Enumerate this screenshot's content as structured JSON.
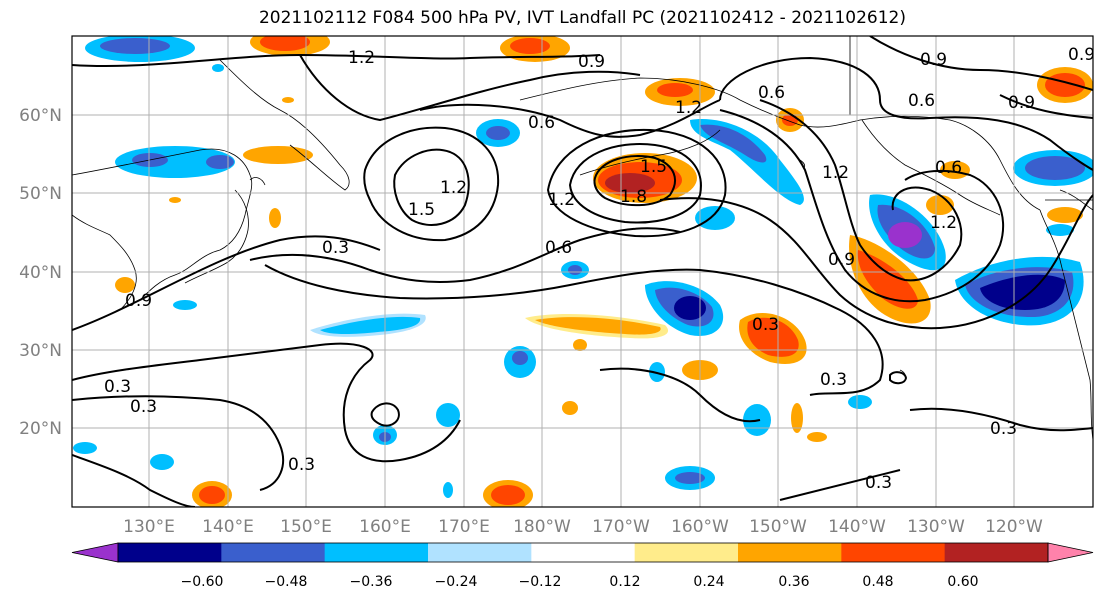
{
  "title": "2021102112 F084 500 hPa PV, IVT Landfall PC (2021102412 - 2021102612)",
  "lat_labels": [
    "20°N",
    "30°N",
    "40°N",
    "50°N",
    "60°N"
  ],
  "lon_labels": [
    "130°E",
    "140°E",
    "150°E",
    "160°E",
    "170°E",
    "180°W",
    "170°W",
    "160°W",
    "150°W",
    "140°W",
    "130°W",
    "120°W"
  ],
  "contour_labels": [
    "1.2",
    "0.9",
    "0.9",
    "0.9",
    "0.6",
    "0.6",
    "0.6",
    "0.6",
    "0.9",
    "1.2",
    "1.5",
    "1.2",
    "1.8",
    "1.5",
    "1.2",
    "0.6",
    "0.3",
    "1.2",
    "0.9",
    "1.2",
    "0.3",
    "0.3",
    "0.3",
    "0.3",
    "0.3",
    "0.3",
    "0.3",
    "0.9"
  ],
  "colorbar": {
    "tick_labels": [
      "−0.60",
      "−0.48",
      "−0.36",
      "−0.24",
      "−0.12",
      "0.12",
      "0.24",
      "0.36",
      "0.48",
      "0.60"
    ],
    "colors": [
      "#9a32cd",
      "#00008b",
      "#3a5fcd",
      "#00bfff",
      "#b0e2ff",
      "#ffffff",
      "#ffec8b",
      "#ffa500",
      "#ff4500",
      "#b22222",
      "#ff82ab"
    ]
  }
}
